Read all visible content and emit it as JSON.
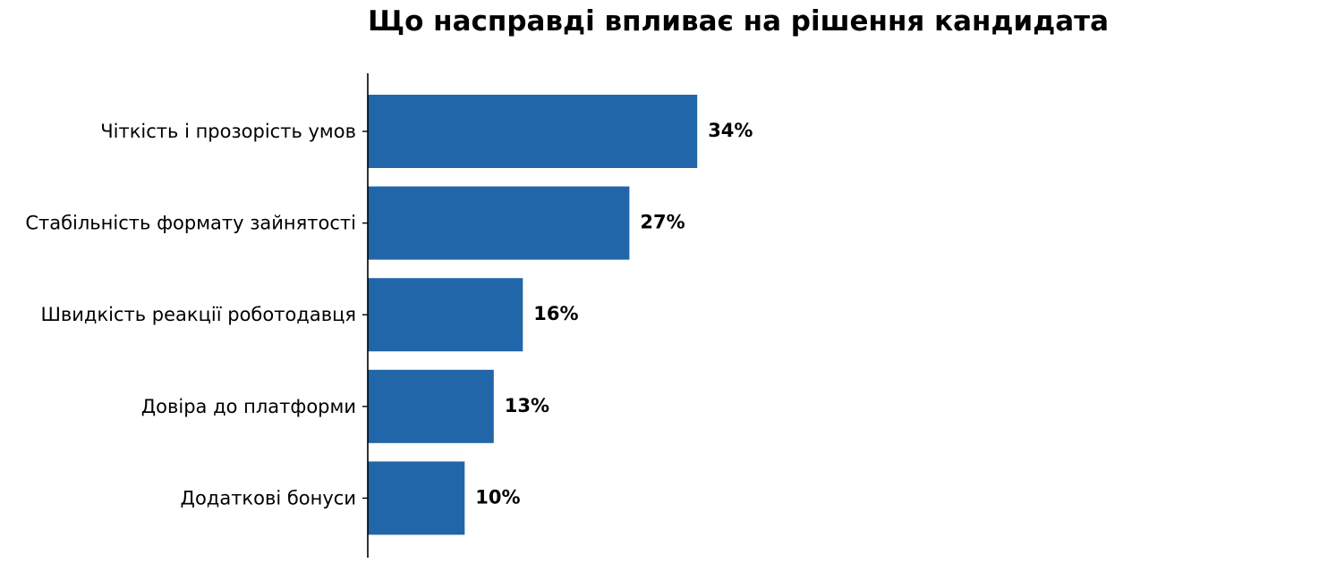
{
  "chart_data": {
    "type": "bar",
    "orientation": "horizontal",
    "title": "Що насправді впливає на рішення кандидата",
    "xlabel": "",
    "ylabel": "",
    "categories": [
      "Чіткість і прозорість умов",
      "Стабільність формату зайнятості",
      "Швидкість реакції роботодавця",
      "Довіра до платформи",
      "Додаткові бонуси"
    ],
    "values": [
      34,
      27,
      16,
      13,
      10
    ],
    "data_labels": [
      "34%",
      "27%",
      "16%",
      "13%",
      "10%"
    ],
    "xlim": [
      0,
      100
    ],
    "grid": false,
    "legend": "none",
    "bar_color": "#2166a8",
    "axis_color": "#000000",
    "text_color": "#000000"
  }
}
